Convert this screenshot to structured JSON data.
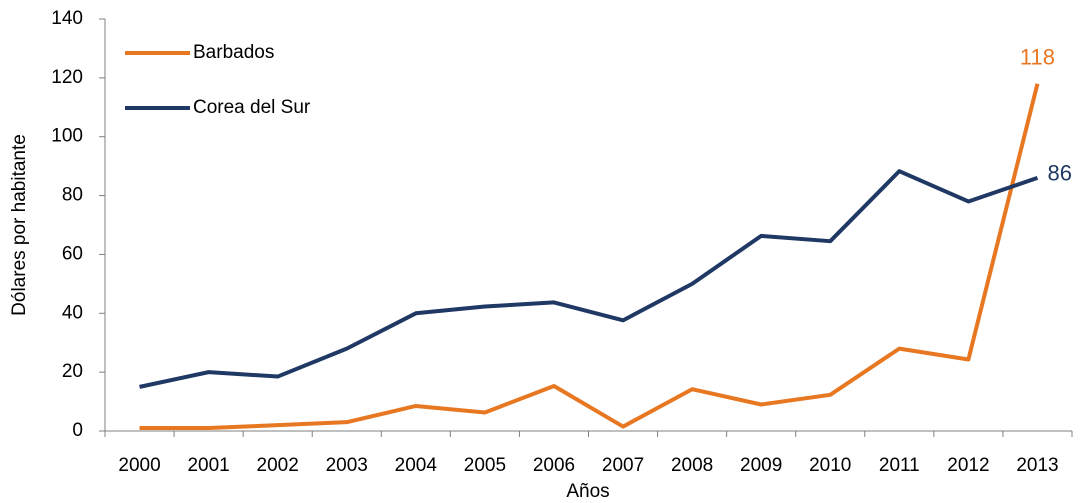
{
  "chart_data": {
    "type": "line",
    "x_label": "Años",
    "y_label": "Dólares por habitante",
    "categories": [
      "2000",
      "2001",
      "2002",
      "2003",
      "2004",
      "2005",
      "2006",
      "2007",
      "2008",
      "2009",
      "2010",
      "2011",
      "2012",
      "2013"
    ],
    "series": [
      {
        "name": "Barbados",
        "color": "#e87722",
        "values": [
          1,
          1,
          2,
          3,
          8.5,
          6.3,
          15.3,
          1.5,
          14.2,
          9,
          12.3,
          28,
          24.3,
          118
        ]
      },
      {
        "name": "Corea del Sur",
        "color": "#1f3864",
        "values": [
          15,
          20,
          18.5,
          28,
          40,
          42.3,
          43.7,
          37.6,
          50,
          66.3,
          64.5,
          88.3,
          78,
          86
        ]
      }
    ],
    "ylim": [
      0,
      140
    ],
    "yticks": [
      0,
      20,
      40,
      60,
      80,
      100,
      120,
      140
    ],
    "grid": false,
    "legend": "top-left"
  }
}
